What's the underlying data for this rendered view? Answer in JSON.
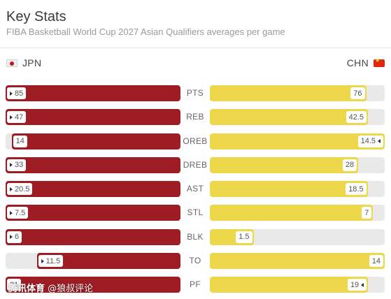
{
  "header": {
    "title": "Key Stats",
    "subtitle": "FIBA Basketball World Cup 2027 Asian Qualifiers averages per game"
  },
  "teams": {
    "left": {
      "code": "JPN",
      "flag_icon": "japan-flag-icon"
    },
    "right": {
      "code": "CHN",
      "flag_icon": "china-flag-icon"
    }
  },
  "colors": {
    "left_bar": "#9e1c24",
    "right_bar": "#ecd84a",
    "track": "#e9e9e9"
  },
  "stats": [
    {
      "label": "PTS",
      "left": "85",
      "right": "76",
      "left_val": 85,
      "right_val": 76,
      "leader": "left"
    },
    {
      "label": "REB",
      "left": "47",
      "right": "42.5",
      "left_val": 47,
      "right_val": 42.5,
      "leader": "left"
    },
    {
      "label": "OREB",
      "left": "14",
      "right": "14.5",
      "left_val": 14,
      "right_val": 14.5,
      "leader": "right"
    },
    {
      "label": "DREB",
      "left": "33",
      "right": "28",
      "left_val": 33,
      "right_val": 28,
      "leader": "left"
    },
    {
      "label": "AST",
      "left": "20.5",
      "right": "18.5",
      "left_val": 20.5,
      "right_val": 18.5,
      "leader": "left"
    },
    {
      "label": "STL",
      "left": "7.5",
      "right": "7",
      "left_val": 7.5,
      "right_val": 7,
      "leader": "left"
    },
    {
      "label": "BLK",
      "left": "6",
      "right": "1.5",
      "left_val": 6,
      "right_val": 1.5,
      "leader": "left"
    },
    {
      "label": "TO",
      "left": "11.5",
      "right": "14",
      "left_val": 11.5,
      "right_val": 14,
      "leader": "left"
    },
    {
      "label": "PF",
      "left": "21",
      "right": "19",
      "left_val": 21,
      "right_val": 19,
      "leader": "right"
    }
  ],
  "watermark": {
    "brand": "腾讯体育",
    "handle": "@狼叔评论"
  }
}
